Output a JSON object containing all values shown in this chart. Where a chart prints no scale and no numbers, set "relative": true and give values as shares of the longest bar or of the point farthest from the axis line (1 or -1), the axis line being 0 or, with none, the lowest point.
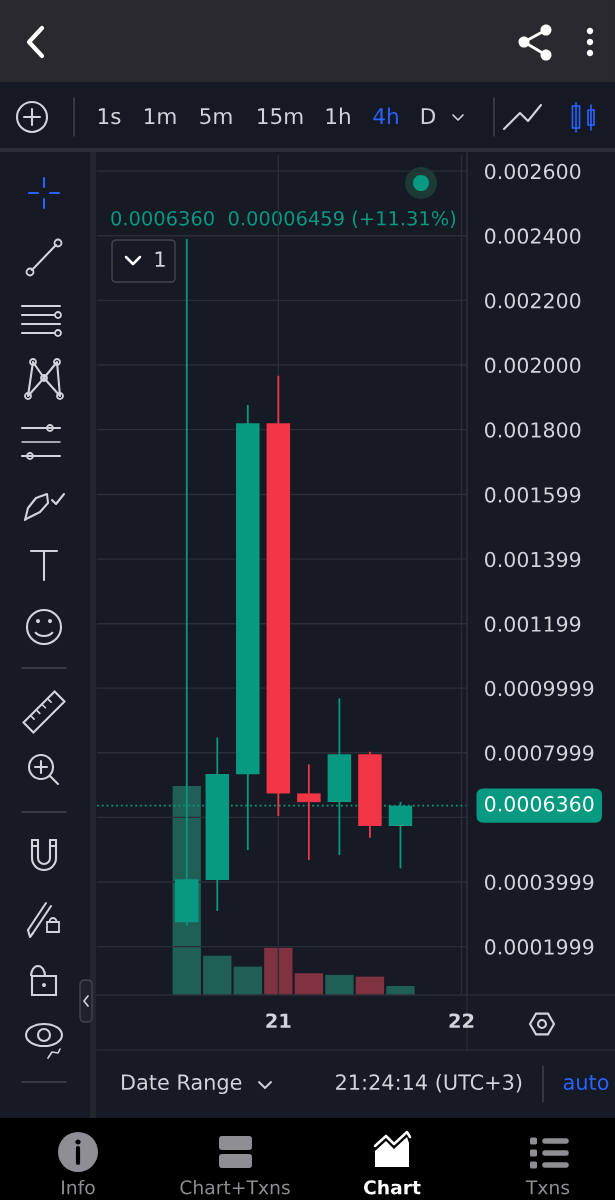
{
  "chart_data": [
    {
      "type": "candlestick",
      "subtitle": "0.0006360  0.00006459 (+11.31%)",
      "x": [
        20.5,
        20.6667,
        20.8333,
        21,
        21.1667,
        21.3333,
        21.5,
        21.6667
      ],
      "ohlc": [
        [
          0.000275,
          0.00239,
          0.000265,
          0.000408
        ],
        [
          0.000406,
          0.000847,
          0.00031,
          0.000734
        ],
        [
          0.000733,
          0.001876,
          0.000499,
          0.00182
        ],
        [
          0.00182,
          0.001967,
          0.000604,
          0.000674
        ],
        [
          0.000674,
          0.000764,
          0.000468,
          0.000647
        ],
        [
          0.000647,
          0.000968,
          0.000483,
          0.000795
        ],
        [
          0.000795,
          0.000803,
          0.000537,
          0.000573
        ],
        [
          0.000573,
          0.000648,
          0.000442,
          0.000636
        ]
      ],
      "colors": [
        "#089981",
        "#089981",
        "#089981",
        "#f23645",
        "#f23645",
        "#089981",
        "#f23645",
        "#089981"
      ],
      "xlim": [
        20.01,
        22.03
      ],
      "xticks": [
        21,
        22
      ],
      "ylim": [
        5e-05,
        0.00265
      ],
      "yticks": [
        0.0001999,
        0.0003999,
        {
          "value": 0.0005999,
          "label": null
        },
        0.0007999,
        0.0009999,
        0.001199,
        0.001399,
        0.001599,
        {
          "value": 0.0018,
          "label": "0.001800"
        },
        {
          "value": 0.002,
          "label": "0.002000"
        },
        {
          "value": 0.0022,
          "label": "0.002200"
        },
        {
          "value": 0.0024,
          "label": "0.002400"
        },
        {
          "value": 0.0026,
          "label": "0.002600"
        }
      ],
      "ref_lines": [
        {
          "axis": "y",
          "value": 0.000636,
          "label": "0.0006360",
          "color": "#089981",
          "line_style": "dotted"
        }
      ],
      "grid": true,
      "annotations": [
        "1s",
        "1m",
        "5m",
        "15m",
        "1h",
        "4h",
        "D",
        "1",
        "Date Range",
        "21:24:14 (UTC+3)",
        "auto",
        "Info",
        "Chart+Txns",
        "Chart",
        "Txns"
      ]
    },
    {
      "type": "bar",
      "relative": true,
      "x": [
        20.5,
        20.6667,
        20.8333,
        21,
        21.1667,
        21.3333,
        21.5,
        21.6667
      ],
      "values": [
        1,
        0.188,
        0.136,
        0.226,
        0.104,
        0.096,
        0.088,
        0.043
      ],
      "colors": [
        "#1f5f56",
        "#1f5f56",
        "#1f5f56",
        "#7f323f",
        "#7f323f",
        "#1f5f56",
        "#7f323f",
        "#1f5f56"
      ],
      "xlim": [
        20.01,
        22.03
      ],
      "tick_labels": false
    }
  ]
}
